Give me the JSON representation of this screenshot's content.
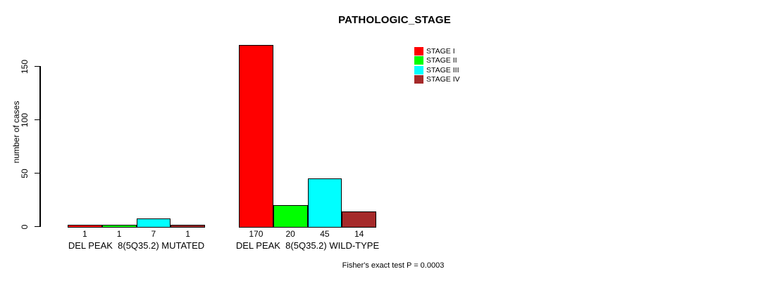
{
  "chart_data": {
    "type": "bar",
    "title": "PATHOLOGIC_STAGE",
    "ylabel": "number of cases",
    "yticks": [
      0,
      50,
      100,
      150
    ],
    "ylim": [
      0,
      170
    ],
    "grid": false,
    "legend_position": "top-right",
    "series": [
      {
        "name": "STAGE I",
        "color": "#ff0000"
      },
      {
        "name": "STAGE II",
        "color": "#00ff00"
      },
      {
        "name": "STAGE III",
        "color": "#00ffff"
      },
      {
        "name": "STAGE IV",
        "color": "#a52a2a"
      }
    ],
    "groups": [
      {
        "label": "DEL PEAK  8(5Q35.2) MUTATED",
        "values": [
          1,
          1,
          7,
          1
        ]
      },
      {
        "label": "DEL PEAK  8(5Q35.2) WILD-TYPE",
        "values": [
          170,
          20,
          45,
          14
        ]
      }
    ],
    "annotation": "Fisher's exact test P = 0.0003"
  }
}
